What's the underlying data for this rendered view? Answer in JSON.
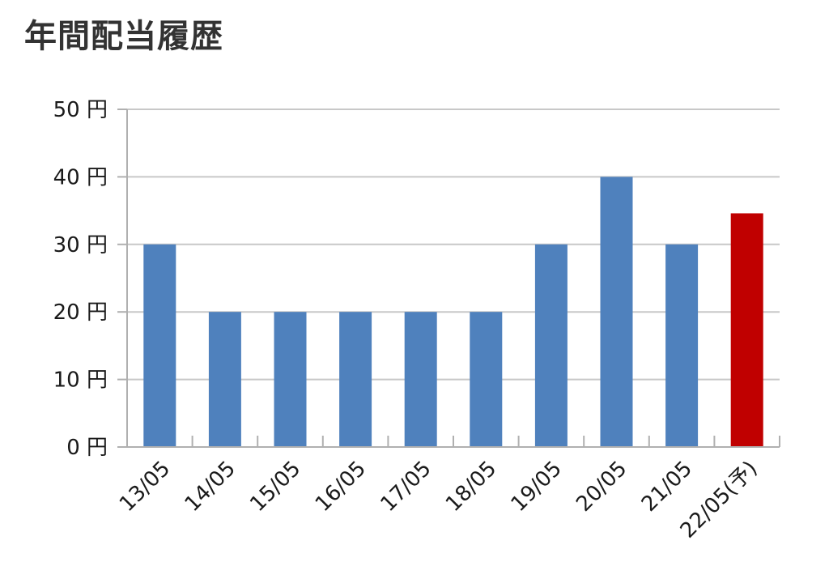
{
  "chart_data": {
    "type": "bar",
    "title": "年間配当履歴",
    "categories": [
      "13/05",
      "14/05",
      "15/05",
      "16/05",
      "17/05",
      "18/05",
      "19/05",
      "20/05",
      "21/05",
      "22/05(予)"
    ],
    "values": [
      30,
      20,
      20,
      20,
      20,
      20,
      30,
      40,
      30,
      34.6
    ],
    "forecast_flags": [
      false,
      false,
      false,
      false,
      false,
      false,
      false,
      false,
      false,
      true
    ],
    "ylim": [
      0,
      50
    ],
    "yticks": [
      0,
      10,
      20,
      30,
      40,
      50
    ],
    "ytick_labels": [
      "0 円",
      "10 円",
      "20 円",
      "30 円",
      "40 円",
      "50 円"
    ],
    "grid": true,
    "colors": {
      "actual": "#4f81bd",
      "forecast": "#c00000",
      "grid": "#c8c8c8",
      "axis": "#b0b0b0"
    }
  }
}
